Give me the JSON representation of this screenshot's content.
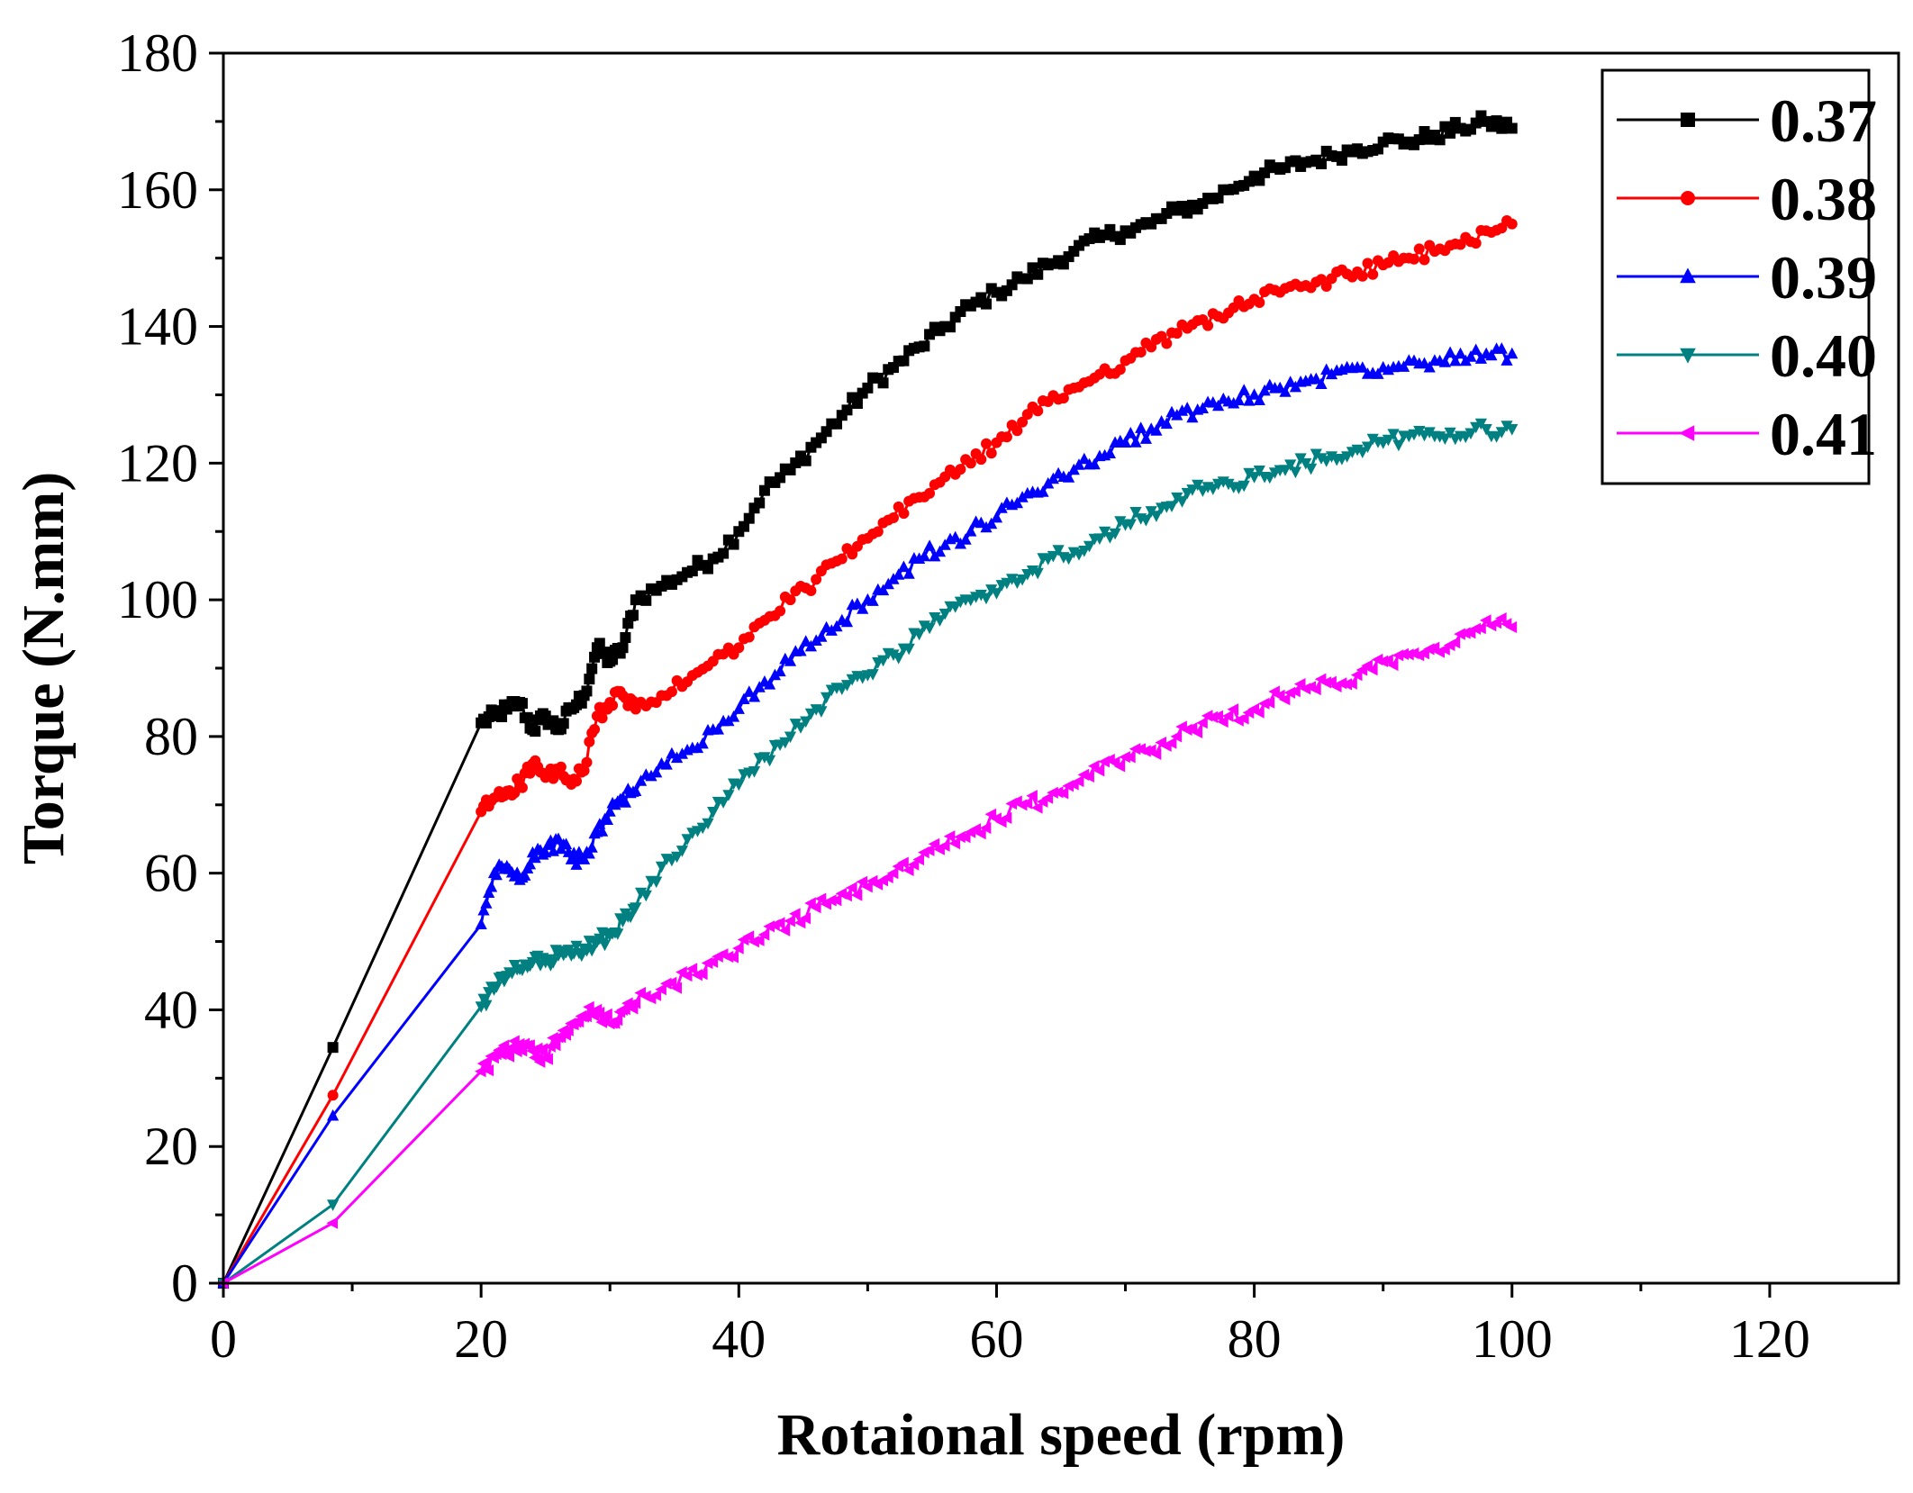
{
  "chart_data": {
    "type": "line",
    "title": "",
    "xlabel": "Rotaional speed (rpm)",
    "ylabel": "Torque (N.mm)",
    "xlim": [
      0,
      130
    ],
    "ylim": [
      0,
      180
    ],
    "xticks": [
      0,
      20,
      40,
      60,
      80,
      100,
      120
    ],
    "yticks": [
      0,
      20,
      40,
      60,
      80,
      100,
      120,
      140,
      160,
      180
    ],
    "grid": false,
    "legend_position": "top-right",
    "series": [
      {
        "name": "0.37",
        "color": "#000000",
        "marker": "square",
        "x": [
          0,
          8.5,
          20,
          21,
          22,
          23,
          24,
          25,
          26,
          27,
          28,
          29,
          30,
          31,
          32,
          34,
          36,
          38,
          40,
          42,
          44,
          46,
          48,
          50,
          52,
          54,
          56,
          58,
          60,
          62,
          64,
          66,
          68,
          70,
          72,
          74,
          76,
          78,
          80,
          82,
          84,
          86,
          88,
          90,
          92,
          94,
          96,
          98,
          100
        ],
        "y": [
          0,
          34.5,
          82,
          83,
          84,
          85,
          81,
          83,
          81,
          84,
          86,
          93,
          91,
          93,
          100,
          102,
          104,
          106,
          110,
          116,
          119,
          123,
          127,
          131,
          134,
          137,
          140,
          143,
          145,
          147,
          149,
          151,
          153,
          154,
          155,
          157,
          158,
          160,
          162,
          163,
          164,
          165,
          166,
          167,
          167,
          168,
          169,
          170,
          169
        ]
      },
      {
        "name": "0.38",
        "color": "#ff0000",
        "marker": "circle",
        "x": [
          0,
          8.5,
          20,
          21,
          22,
          23,
          24,
          25,
          26,
          27,
          28,
          29,
          30,
          31,
          32,
          34,
          36,
          38,
          40,
          42,
          44,
          46,
          48,
          50,
          52,
          54,
          56,
          58,
          60,
          62,
          64,
          66,
          68,
          70,
          72,
          74,
          76,
          78,
          80,
          82,
          84,
          86,
          88,
          90,
          92,
          94,
          96,
          98,
          100
        ],
        "y": [
          0,
          27.5,
          69,
          71,
          72,
          73,
          76,
          74,
          75,
          73,
          75,
          83,
          85,
          86,
          84,
          86,
          88,
          91,
          93,
          97,
          100,
          103,
          106,
          109,
          112,
          115,
          118,
          120,
          123,
          126,
          129,
          131,
          133,
          135,
          137,
          139,
          141,
          142,
          144,
          145,
          146,
          147,
          148,
          149,
          150,
          151,
          152,
          154,
          155
        ]
      },
      {
        "name": "0.39",
        "color": "#0000ff",
        "marker": "triangle-up",
        "x": [
          0,
          8.5,
          20,
          21,
          22,
          23,
          24,
          25,
          26,
          27,
          28,
          29,
          30,
          31,
          32,
          34,
          36,
          38,
          40,
          42,
          44,
          46,
          48,
          50,
          52,
          54,
          56,
          58,
          60,
          62,
          64,
          66,
          68,
          70,
          72,
          74,
          76,
          78,
          80,
          82,
          84,
          86,
          88,
          90,
          92,
          94,
          96,
          98,
          100
        ],
        "y": [
          0,
          24.5,
          52.5,
          60,
          61,
          59,
          63,
          63,
          65,
          62,
          62,
          66,
          69,
          71,
          72,
          76,
          78,
          81,
          84,
          88,
          91,
          94,
          97,
          100,
          103,
          106,
          108,
          110,
          112,
          115,
          117,
          119,
          121,
          123,
          125,
          127,
          128,
          129,
          130,
          131,
          132,
          133,
          134,
          134,
          135,
          135,
          136,
          136,
          136
        ]
      },
      {
        "name": "0.40",
        "color": "#008080",
        "marker": "triangle-down",
        "x": [
          0,
          8.5,
          20,
          21,
          22,
          23,
          24,
          25,
          26,
          27,
          28,
          29,
          30,
          31,
          32,
          34,
          36,
          38,
          40,
          42,
          44,
          46,
          48,
          50,
          52,
          54,
          56,
          58,
          60,
          62,
          64,
          66,
          68,
          70,
          72,
          74,
          76,
          78,
          80,
          82,
          84,
          86,
          88,
          90,
          92,
          94,
          96,
          98,
          100
        ],
        "y": [
          0,
          11.5,
          40.5,
          43,
          45,
          46,
          47,
          47,
          48,
          48,
          49,
          50,
          51,
          53,
          55,
          61,
          65,
          69,
          73,
          77,
          80,
          84,
          87,
          89,
          92,
          95,
          98,
          100,
          101,
          103,
          106,
          107,
          109,
          111,
          113,
          115,
          116,
          117,
          118,
          119,
          120,
          121,
          122,
          123,
          124,
          124,
          124,
          125,
          125
        ]
      },
      {
        "name": "0.41",
        "color": "#ff00ff",
        "marker": "triangle-left",
        "x": [
          0,
          8.5,
          20,
          21,
          22,
          23,
          24,
          25,
          26,
          27,
          28,
          29,
          30,
          31,
          32,
          34,
          36,
          38,
          40,
          42,
          44,
          46,
          48,
          50,
          52,
          54,
          56,
          58,
          60,
          62,
          64,
          66,
          68,
          70,
          72,
          74,
          76,
          78,
          80,
          82,
          84,
          86,
          88,
          90,
          92,
          94,
          96,
          98,
          100
        ],
        "y": [
          0,
          8.8,
          31,
          33,
          34,
          35,
          34,
          33,
          36,
          38,
          39,
          40,
          38,
          40,
          41,
          43,
          45,
          47,
          49,
          51,
          53,
          55,
          57,
          58,
          60,
          62,
          64,
          66,
          68,
          70,
          71,
          73,
          75,
          77,
          78,
          80,
          82,
          83,
          84,
          86,
          87,
          88,
          89,
          91,
          92,
          93,
          95,
          97,
          96
        ]
      }
    ]
  }
}
